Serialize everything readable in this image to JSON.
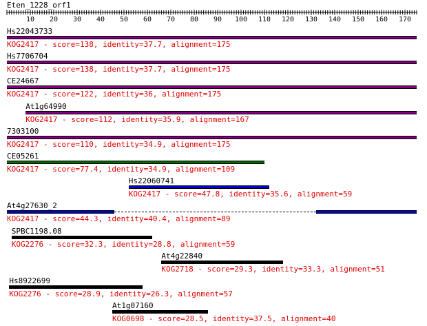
{
  "query": {
    "name": "Eten_1228_orf1",
    "length": 175
  },
  "ruler": {
    "ticks": [
      10,
      20,
      30,
      40,
      50,
      60,
      70,
      80,
      90,
      100,
      110,
      120,
      130,
      140,
      150,
      160,
      170
    ]
  },
  "colors": {
    "purple": "#8b008b",
    "green": "#006400",
    "blue": "#0000cd",
    "black": "#000000",
    "text_red": "#e00000"
  },
  "hits": [
    {
      "name": "Hs22043733",
      "stats": "KOG2417 - score=138, identity=37.7, alignment=175",
      "color": "#800080",
      "segments": [
        [
          0,
          175
        ]
      ]
    },
    {
      "name": "Hs7706704",
      "stats": "KOG2417 - score=138, identity=37.7, alignment=175",
      "color": "#800080",
      "segments": [
        [
          0,
          175
        ]
      ]
    },
    {
      "name": "CE24667",
      "stats": "KOG2417 - score=122, identity=36, alignment=175",
      "color": "#800080",
      "segments": [
        [
          0,
          175
        ]
      ]
    },
    {
      "name": "At1g64990",
      "stats": "KOG2417 - score=112, identity=35.9, alignment=167",
      "color": "#800080",
      "segments": [
        [
          8,
          175
        ]
      ]
    },
    {
      "name": "7303100",
      "stats": "KOG2417 - score=110, identity=34.9, alignment=175",
      "color": "#800080",
      "segments": [
        [
          0,
          175
        ]
      ]
    },
    {
      "name": "CE05261",
      "stats": "KOG2417 - score=77.4, identity=34.9, alignment=109",
      "color": "#006400",
      "segments": [
        [
          0,
          110
        ]
      ]
    },
    {
      "name": "Hs22060741",
      "stats": "KOG2417 - score=47.8, identity=35.6, alignment=59",
      "color": "#0000cd",
      "segments": [
        [
          52,
          112
        ]
      ]
    },
    {
      "name": "At4g27630_2",
      "stats": "KOG2417 - score=44.3, identity=40.4, alignment=89",
      "color": "#0000cd",
      "segments": [
        [
          0,
          46
        ],
        [
          132,
          175
        ]
      ]
    },
    {
      "name": "SPBC1198.08",
      "stats": "KOG2276 - score=32.3, identity=28.8, alignment=59",
      "color": "#000000",
      "segments": [
        [
          2,
          62
        ]
      ]
    },
    {
      "name": "At4g22840",
      "stats": "KOG2718 - score=29.3, identity=33.3, alignment=51",
      "color": "#000000",
      "segments": [
        [
          66,
          118
        ]
      ]
    },
    {
      "name": "Hs8922699",
      "stats": "KOG2276 - score=28.9, identity=26.3, alignment=57",
      "color": "#000000",
      "segments": [
        [
          1,
          58
        ]
      ]
    },
    {
      "name": "At1g07160",
      "stats": "KOG0698 - score=28.5, identity=37.5, alignment=40",
      "color": "#000000",
      "segments": [
        [
          45,
          86
        ]
      ]
    }
  ]
}
